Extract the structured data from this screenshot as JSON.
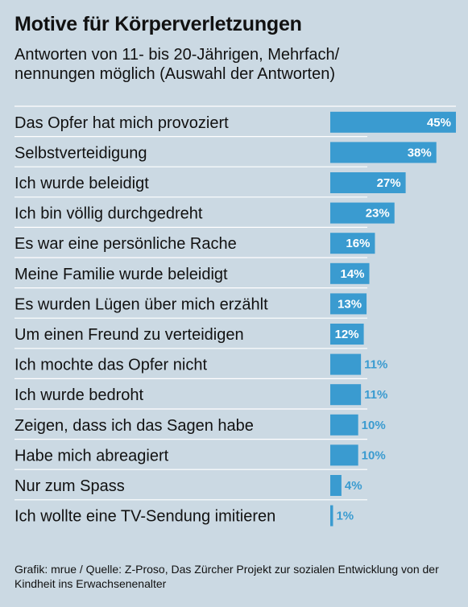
{
  "chart_data": {
    "type": "bar",
    "orientation": "horizontal",
    "title": "Motive für Körperverletzungen",
    "subtitle": "Antworten von 11- bis 20-Jährigen, Mehrfach/\nnennungen möglich (Auswahl der Antworten)",
    "categories": [
      "Das Opfer hat mich provoziert",
      "Selbstverteidigung",
      "Ich wurde beleidigt",
      "Ich bin völlig durchgedreht",
      "Es war eine persönliche Rache",
      "Meine Familie wurde beleidigt",
      "Es wurden Lügen über mich erzählt",
      "Um einen Freund zu verteidigen",
      "Ich mochte das Opfer nicht",
      "Ich wurde bedroht",
      "Zeigen, dass ich das Sagen habe",
      "Habe mich abreagiert",
      "Nur zum Spass",
      "Ich wollte eine TV-Sendung imitieren"
    ],
    "values": [
      45,
      38,
      27,
      23,
      16,
      14,
      13,
      12,
      11,
      11,
      10,
      10,
      4,
      1
    ],
    "value_labels": [
      "45%",
      "38%",
      "27%",
      "23%",
      "16%",
      "14%",
      "13%",
      "12%",
      "11%",
      "11%",
      "10%",
      "10%",
      "4%",
      "1%"
    ],
    "xlim": [
      0,
      45
    ],
    "grid": false,
    "legend": "none",
    "colors": {
      "bar": "#3a9bd0",
      "background": "#cbd9e3",
      "separator": "#ffffff",
      "label_inside": "#ffffff",
      "label_outside": "#3a9bd0"
    }
  },
  "source": "Grafik: mrue / Quelle: Z-Proso, Das Zürcher Projekt zur sozialen Entwicklung von der Kindheit ins Erwachsenenalter"
}
